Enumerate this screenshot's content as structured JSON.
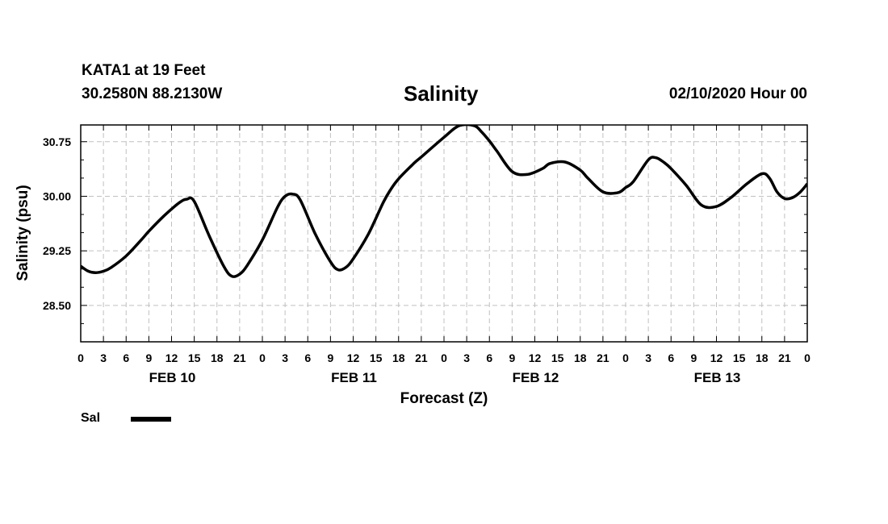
{
  "header": {
    "station": "KATA1 at 19 Feet",
    "coords": "30.2580N 88.2130W",
    "datetime": "02/10/2020 Hour 00"
  },
  "legend": {
    "label": "Sal",
    "color": "#000000"
  },
  "chart_data": {
    "type": "line",
    "title": "Salinity",
    "xlabel": "Forecast (Z)",
    "ylabel": "Salinity (psu)",
    "ylim": [
      28.0,
      30.98
    ],
    "yticks": [
      "28.50",
      "29.25",
      "30.00",
      "30.75"
    ],
    "ytick_values": [
      28.5,
      29.25,
      30.0,
      30.75
    ],
    "xlim": [
      0,
      96
    ],
    "xtick_labels": [
      "0",
      "3",
      "6",
      "9",
      "12",
      "15",
      "18",
      "21",
      "0",
      "3",
      "6",
      "9",
      "12",
      "15",
      "18",
      "21",
      "0",
      "3",
      "6",
      "9",
      "12",
      "15",
      "18",
      "21",
      "0",
      "3",
      "6",
      "9",
      "12",
      "15",
      "18",
      "21",
      "0"
    ],
    "day_labels": [
      {
        "label": "FEB 10",
        "hour": 12
      },
      {
        "label": "FEB 11",
        "hour": 36
      },
      {
        "label": "FEB 12",
        "hour": 60
      },
      {
        "label": "FEB 13",
        "hour": 84
      }
    ],
    "grid": true,
    "series": [
      {
        "name": "Sal",
        "x": [
          0,
          1,
          2,
          3,
          4,
          6,
          8,
          9,
          11,
          13,
          14,
          15,
          17,
          19,
          20,
          21,
          22,
          24,
          26,
          27,
          28,
          29,
          31,
          33,
          34,
          35,
          36,
          38,
          40,
          41,
          42,
          44,
          45,
          48,
          50,
          52,
          53,
          54,
          55,
          57,
          59,
          61,
          62,
          64,
          66,
          67,
          69,
          71,
          72,
          73,
          75,
          76,
          77,
          78,
          80,
          82,
          84,
          86,
          88,
          90,
          91,
          92,
          93,
          94,
          95,
          96
        ],
        "values": [
          29.04,
          28.97,
          28.95,
          28.97,
          29.02,
          29.18,
          29.4,
          29.52,
          29.73,
          29.91,
          29.96,
          29.93,
          29.45,
          29.02,
          28.9,
          28.93,
          29.05,
          29.4,
          29.85,
          30.0,
          30.03,
          29.95,
          29.48,
          29.1,
          28.99,
          29.02,
          29.14,
          29.48,
          29.92,
          30.1,
          30.24,
          30.45,
          30.54,
          30.81,
          30.97,
          30.97,
          30.88,
          30.76,
          30.62,
          30.34,
          30.3,
          30.38,
          30.45,
          30.47,
          30.36,
          30.25,
          30.06,
          30.05,
          30.12,
          30.2,
          30.5,
          30.53,
          30.47,
          30.38,
          30.15,
          29.88,
          29.86,
          29.99,
          30.17,
          30.31,
          30.25,
          30.06,
          29.97,
          29.98,
          30.05,
          30.17
        ]
      }
    ]
  }
}
